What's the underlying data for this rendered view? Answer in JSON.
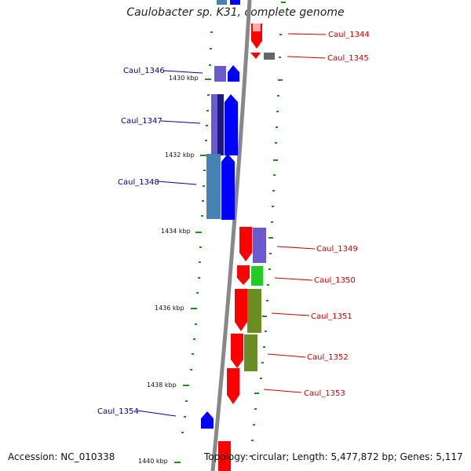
{
  "header": {
    "title": "Caulobacter sp. K31, complete genome"
  },
  "footer": {
    "accession": "Accession: NC_010338",
    "topology": "Topology: circular; Length: 5,477,872 bp; Genes: 5,117"
  },
  "scale_ticks": [
    "1430 kbp",
    "1432 kbp",
    "1434 kbp",
    "1436 kbp",
    "1438 kbp",
    "1440 kbp"
  ],
  "genes_left": [
    {
      "label": "Caul_1346"
    },
    {
      "label": "Caul_1347"
    },
    {
      "label": "Caul_1348"
    },
    {
      "label": "Caul_1354"
    }
  ],
  "genes_right": [
    {
      "label": "Caul_1344"
    },
    {
      "label": "Caul_1345"
    },
    {
      "label": "Caul_1349"
    },
    {
      "label": "Caul_1350"
    },
    {
      "label": "Caul_1351"
    },
    {
      "label": "Caul_1352"
    },
    {
      "label": "Caul_1353"
    }
  ],
  "colors": {
    "strand_red": "#ff0000",
    "strand_blue": "#0000ff",
    "cog_purple": "#6a5acd",
    "cog_green": "#22cc22",
    "cog_olive": "#6b8e23",
    "cog_steel": "#4682b4",
    "cog_gray": "#666666",
    "backbone": "#888888",
    "ticks": "#228b22"
  }
}
